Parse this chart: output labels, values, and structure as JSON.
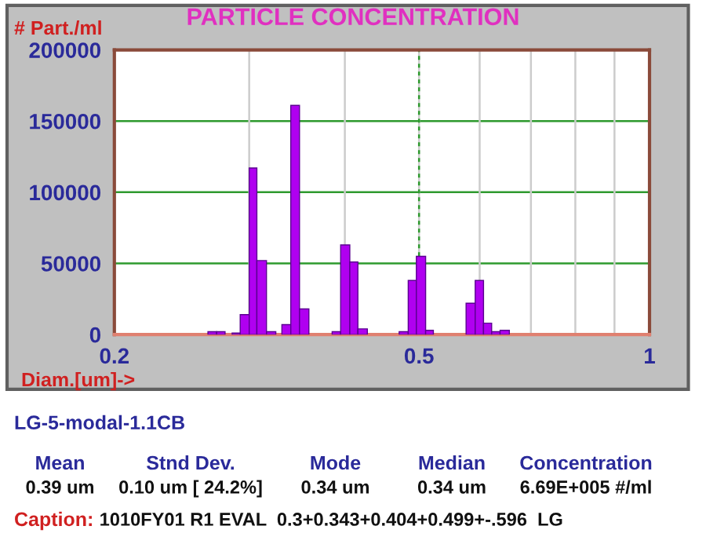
{
  "chart_data": {
    "type": "histogram",
    "title": "PARTICLE CONCENTRATION",
    "ylabel": "# Part./ml",
    "xlabel": "Diam.[um]->",
    "bins": [
      0.265,
      0.272,
      0.279,
      0.285,
      0.292,
      0.3,
      0.307,
      0.316,
      0.325,
      0.331,
      0.34,
      0.349,
      0.359,
      0.385,
      0.395,
      0.406,
      0.416,
      0.428,
      0.471,
      0.484,
      0.496,
      0.51,
      0.522,
      0.576,
      0.592,
      0.607,
      0.622,
      0.638,
      0.656
    ],
    "values": [
      2000,
      2000,
      null,
      1000,
      14000,
      117000,
      52000,
      2000,
      null,
      7000,
      161000,
      18000,
      null,
      2000,
      63000,
      51000,
      4000,
      null,
      2000,
      38000,
      55000,
      3000,
      null,
      22000,
      38000,
      8000,
      2000,
      3000
    ],
    "ref_lines": [
      {
        "axis": "x",
        "value": 0.5,
        "color": "#2e9a2e",
        "line_style": "dashed"
      }
    ],
    "color": "#b000f0",
    "log": "x",
    "xlim": [
      0.2,
      1
    ],
    "xticks": [
      0.2,
      {
        "value": 0.3,
        "label": null
      },
      {
        "value": 0.4,
        "label": null
      },
      0.5,
      {
        "value": 0.6,
        "label": null
      },
      {
        "value": 0.7,
        "label": null
      },
      {
        "value": 0.8,
        "label": null
      },
      {
        "value": 0.9,
        "label": null
      },
      1
    ],
    "ylim": [
      0,
      200000
    ],
    "yticks": [
      0,
      50000,
      100000,
      150000,
      200000
    ],
    "grid": true,
    "annotations": [
      "LG-5-modal-1.1CB",
      "Mean",
      "0.39 um",
      "Stnd Dev.",
      "0.10 um [ 24.2%]",
      "Mode",
      "0.34 um",
      "Median",
      "0.34 um",
      "Concentration",
      "6.69E+005 #/ml",
      "Caption:",
      "1010FY01 R1 EVAL  0.3+0.343+0.404+0.499+-.596  LG"
    ]
  }
}
